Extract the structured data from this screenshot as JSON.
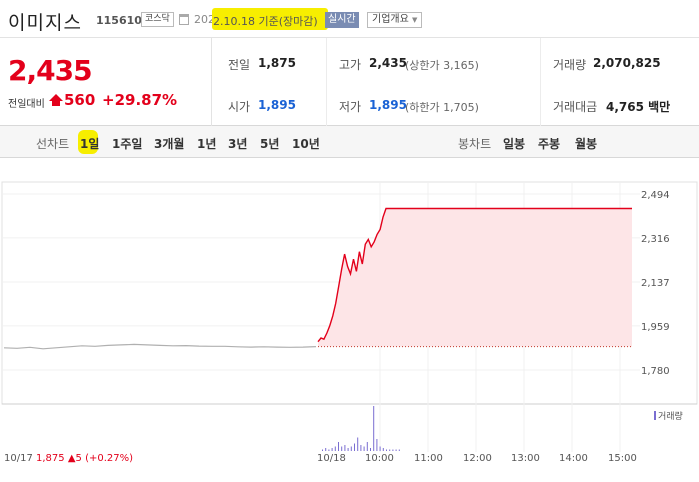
{
  "header": {
    "name": "이미지스",
    "code": "115610",
    "market": "코스닥",
    "date_prefix": "202",
    "date_basis": "2.10.18 기준(장마감)",
    "realtime": "실시간",
    "company_overview": "기업개요"
  },
  "summary": {
    "price": "2,435",
    "vs_label": "전일대비",
    "change": "560",
    "change_rate": "+29.87%",
    "stats": {
      "prev_close_label": "전일",
      "prev_close": "1,875",
      "high_label": "고가",
      "high": "2,435",
      "upper_limit": "(상한가 3,165)",
      "volume_label": "거래량",
      "volume": "2,070,825",
      "open_label": "시가",
      "open": "1,895",
      "low_label": "저가",
      "low": "1,895",
      "lower_limit": "(하한가 1,705)",
      "amount_label": "거래대금",
      "amount": "4,765 백만"
    }
  },
  "tabs": {
    "line_label": "선차트",
    "line_tabs": [
      "1일",
      "1주일",
      "3개월",
      "1년",
      "3년",
      "5년",
      "10년"
    ],
    "candle_label": "봉차트",
    "candle_tabs": [
      "일봉",
      "주봉",
      "월봉"
    ]
  },
  "chart_data": {
    "type": "line",
    "y_ticks": [
      "2,494",
      "2,316",
      "2,137",
      "1,959",
      "1,780"
    ],
    "ylim": [
      1780,
      2494
    ],
    "prev_close": 1875,
    "x_ticks": [
      "10/17",
      "10/18",
      "10:00",
      "11:00",
      "12:00",
      "13:00",
      "14:00",
      "15:00"
    ],
    "prev_day_series": {
      "name": "10/17",
      "values": [
        1870,
        1868,
        1872,
        1866,
        1870,
        1874,
        1878,
        1876,
        1880,
        1882,
        1884,
        1882,
        1880,
        1878,
        1879,
        1877,
        1876,
        1876,
        1874,
        1873,
        1874,
        1873,
        1872,
        1873,
        1875
      ]
    },
    "today_series": {
      "name": "10/18",
      "values": [
        1895,
        1910,
        1905,
        1930,
        1960,
        2000,
        2050,
        2120,
        2190,
        2250,
        2200,
        2170,
        2230,
        2180,
        2260,
        2210,
        2290,
        2310,
        2280,
        2300,
        2330,
        2350,
        2400,
        2435,
        2435,
        2435,
        2435,
        2435,
        2435,
        2435,
        2435,
        2435
      ]
    },
    "volume_label": "거래량",
    "volume_values": [
      1,
      2,
      1,
      2,
      3,
      6,
      3,
      4,
      2,
      3,
      5,
      9,
      4,
      3,
      6,
      2,
      30,
      8,
      3,
      2,
      1,
      1,
      1,
      1,
      1,
      0,
      0,
      0
    ],
    "colors": {
      "up": "#e3001b",
      "prev": "#b0b0b0",
      "fill": "#fde5e7",
      "volume": "#7a6ed1"
    }
  },
  "footer": {
    "prev_date": "10/17",
    "prev_price": "1,875",
    "prev_change": "▲5 (+0.27%)"
  }
}
